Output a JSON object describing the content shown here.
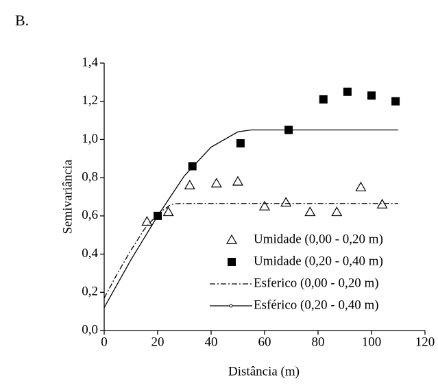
{
  "panel_label": "B.",
  "chart_data": {
    "type": "scatter",
    "xlabel": "Distância (m)",
    "ylabel": "Semivariância",
    "xlim": [
      0,
      120
    ],
    "xticks": [
      0,
      20,
      40,
      60,
      80,
      100,
      120
    ],
    "ylim": [
      0,
      1.4
    ],
    "yticks": [
      {
        "value": 0,
        "label": "0,0"
      },
      {
        "value": 0.2,
        "label": "0,2"
      },
      {
        "value": 0.4,
        "label": "0,4"
      },
      {
        "value": 0.6,
        "label": "0,6"
      },
      {
        "value": 0.8,
        "label": "0,8"
      },
      {
        "value": 1.0,
        "label": "1,0"
      },
      {
        "value": 1.2,
        "label": "1,2"
      },
      {
        "value": 1.4,
        "label": "1,4"
      }
    ],
    "legend": "lower right",
    "series": [
      {
        "name": "Umidade (0,00 - 0,20 m)",
        "type": "scatter",
        "marker": "triangle-open",
        "color": "#000000",
        "x": [
          16,
          24,
          32,
          42,
          50,
          60,
          68,
          77,
          87,
          96,
          104
        ],
        "values": [
          0.57,
          0.62,
          0.76,
          0.77,
          0.78,
          0.65,
          0.67,
          0.62,
          0.62,
          0.75,
          0.66
        ]
      },
      {
        "name": "Umidade (0,20 - 0,40 m)",
        "type": "scatter",
        "marker": "square",
        "color": "#000000",
        "x": [
          20,
          33,
          51,
          69,
          82,
          91,
          100,
          109
        ],
        "values": [
          0.6,
          0.86,
          0.98,
          1.05,
          1.21,
          1.25,
          1.23,
          1.2
        ]
      },
      {
        "name": "Esferico (0,00 - 0,20 m)",
        "type": "line",
        "style": "dash-dot",
        "color": "#000000",
        "x": [
          0,
          5,
          10,
          15,
          20,
          25,
          28,
          40,
          60,
          80,
          100,
          110
        ],
        "values": [
          0.17,
          0.3,
          0.42,
          0.53,
          0.61,
          0.66,
          0.665,
          0.665,
          0.665,
          0.665,
          0.665,
          0.665
        ]
      },
      {
        "name": "Esférico (0,20 - 0,40 m)",
        "type": "line",
        "style": "solid",
        "color": "#000000",
        "x": [
          0,
          10,
          20,
          30,
          40,
          50,
          55,
          70,
          90,
          110
        ],
        "values": [
          0.12,
          0.37,
          0.6,
          0.81,
          0.96,
          1.04,
          1.05,
          1.05,
          1.05,
          1.05
        ]
      }
    ]
  }
}
